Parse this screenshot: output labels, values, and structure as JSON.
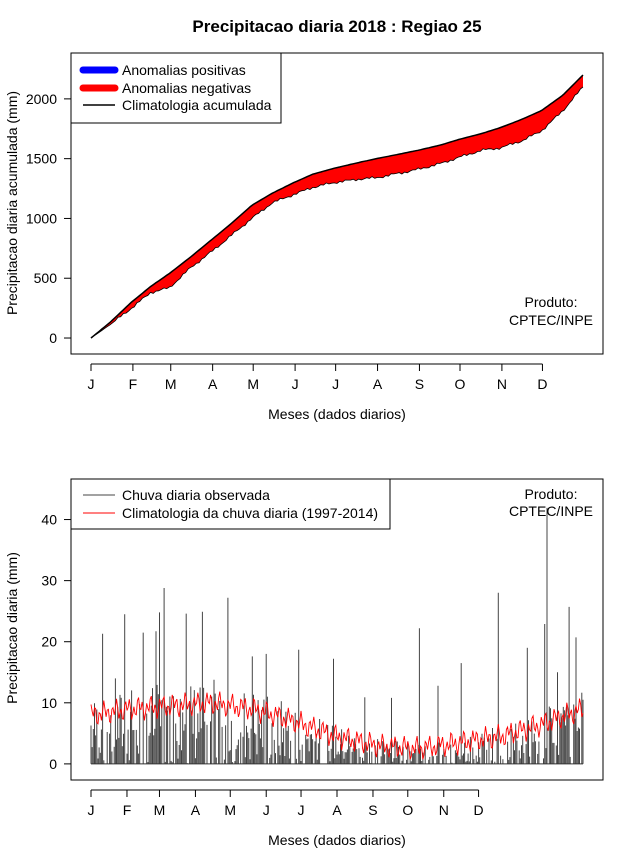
{
  "title": "Precipitacao diaria 2018 : Regiao 25",
  "product_label": [
    "Produto:",
    "CPTEC/INPE"
  ],
  "months": [
    "J",
    "F",
    "M",
    "A",
    "M",
    "J",
    "J",
    "A",
    "S",
    "O",
    "N",
    "D"
  ],
  "xlabel": "Meses (dados diarios)",
  "colors": {
    "positive": "#0000ff",
    "negative": "#ff0000",
    "observed": "#444444",
    "climatology_daily": "#ff0000",
    "line": "#000000"
  },
  "chart_data": [
    {
      "type": "area",
      "panel": "top",
      "ylabel": "Precipitacao diaria acumulada (mm)",
      "ylim": [
        -50,
        2300
      ],
      "yticks": [
        0,
        500,
        1000,
        1500,
        2000
      ],
      "xlim": [
        1,
        365
      ],
      "legend": {
        "position": "top-left",
        "entries": [
          "Anomalias positivas",
          "Anomalias negativas",
          "Climatologia acumulada"
        ]
      },
      "climatology_cumulative": {
        "day": [
          1,
          15,
          31,
          45,
          59,
          75,
          90,
          105,
          120,
          135,
          151,
          165,
          181,
          200,
          212,
          230,
          243,
          260,
          273,
          290,
          304,
          320,
          334,
          350,
          365
        ],
        "value": [
          0,
          130,
          300,
          430,
          540,
          680,
          820,
          960,
          1110,
          1210,
          1300,
          1370,
          1420,
          1470,
          1500,
          1540,
          1570,
          1615,
          1660,
          1710,
          1760,
          1830,
          1900,
          2030,
          2200
        ]
      },
      "observed_cumulative": {
        "day": [
          1,
          15,
          31,
          45,
          59,
          75,
          90,
          105,
          120,
          135,
          151,
          165,
          181,
          200,
          212,
          230,
          243,
          260,
          273,
          290,
          304,
          320,
          334,
          350,
          365
        ],
        "value": [
          0,
          110,
          250,
          380,
          420,
          590,
          720,
          860,
          1000,
          1130,
          1200,
          1260,
          1300,
          1330,
          1340,
          1380,
          1410,
          1460,
          1510,
          1570,
          1590,
          1650,
          1730,
          1900,
          2100
        ]
      }
    },
    {
      "type": "bar",
      "panel": "bottom",
      "ylabel": "Precipitacao diaria (mm)",
      "ylim": [
        -1,
        45
      ],
      "yticks": [
        0,
        10,
        20,
        30,
        40
      ],
      "xlim": [
        1,
        365
      ],
      "legend": {
        "position": "top-left",
        "entries": [
          "Chuva diaria observada",
          "Climatologia da chuva diaria (1997-2014)"
        ]
      },
      "observed_peaks": [
        {
          "day": 11,
          "value": 21.3
        },
        {
          "day": 22,
          "value": 14.0
        },
        {
          "day": 30,
          "value": 24.5
        },
        {
          "day": 46,
          "value": 21.5
        },
        {
          "day": 57,
          "value": 21.7
        },
        {
          "day": 60,
          "value": 24.8
        },
        {
          "day": 64,
          "value": 28.8
        },
        {
          "day": 83,
          "value": 24.6
        },
        {
          "day": 97,
          "value": 24.9
        },
        {
          "day": 119,
          "value": 27.2
        },
        {
          "day": 140,
          "value": 17.6
        },
        {
          "day": 152,
          "value": 18.0
        },
        {
          "day": 180,
          "value": 18.7
        },
        {
          "day": 210,
          "value": 17.2
        },
        {
          "day": 237,
          "value": 10.9
        },
        {
          "day": 260,
          "value": 10.8
        },
        {
          "day": 284,
          "value": 22.2
        },
        {
          "day": 300,
          "value": 12.8
        },
        {
          "day": 320,
          "value": 16.5
        },
        {
          "day": 352,
          "value": 28.0
        },
        {
          "day": 377,
          "value": 19.0
        },
        {
          "day": 392,
          "value": 22.9
        },
        {
          "day": 394,
          "value": 41.9
        },
        {
          "day": 403,
          "value": 15.0
        },
        {
          "day": 413,
          "value": 25.7
        },
        {
          "day": 419,
          "value": 20.7
        }
      ],
      "climatology_levels": {
        "day": [
          1,
          31,
          60,
          90,
          121,
          151,
          182,
          213,
          243,
          274,
          304,
          335,
          365
        ],
        "value": [
          8,
          9,
          9.5,
          10,
          9,
          7,
          4.5,
          3,
          2.5,
          3.5,
          4.5,
          6.5,
          9
        ]
      }
    }
  ]
}
